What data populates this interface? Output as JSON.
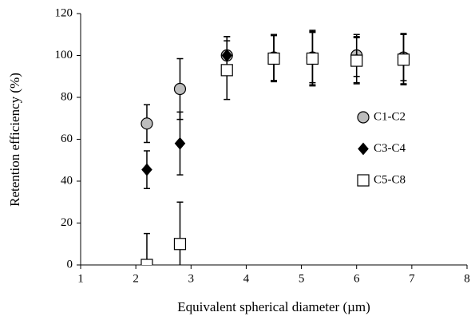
{
  "chart_data": {
    "type": "scatter",
    "x_label": "Equivalent spherical diameter (µm)",
    "y_label": "Retention efficiency (%)",
    "xlim": [
      1,
      8
    ],
    "xticks": [
      1,
      2,
      3,
      4,
      5,
      6,
      7,
      8
    ],
    "ylim": [
      0,
      120
    ],
    "yticks": [
      0,
      20,
      40,
      60,
      80,
      100,
      120
    ],
    "grid": false,
    "legend": "right",
    "series": [
      {
        "name": "C1-C2",
        "color": "#bdbdbd",
        "marker": "circle",
        "x": [
          2.2,
          2.8,
          3.65,
          4.5,
          5.2,
          6.0,
          6.85
        ],
        "values": [
          67.5,
          84,
          100,
          99,
          99,
          100,
          99
        ],
        "errors": [
          9,
          14.5,
          9,
          11,
          12,
          10,
          11
        ]
      },
      {
        "name": "C3-C4",
        "color": "#000000",
        "marker": "diamond",
        "x": [
          2.2,
          2.8,
          3.65,
          4.5,
          5.2,
          6.0,
          6.85
        ],
        "values": [
          45.5,
          58,
          100,
          99,
          99,
          98,
          98.5
        ],
        "errors": [
          9,
          15,
          9,
          11,
          13,
          11,
          12
        ]
      },
      {
        "name": "C5-C8",
        "color": "#ffffff",
        "marker": "square",
        "x": [
          2.2,
          2.8,
          3.65,
          4.5,
          5.2,
          6.0,
          6.85
        ],
        "values": [
          0,
          10,
          93,
          98.5,
          98.5,
          97.5,
          98
        ],
        "errors": [
          15,
          20,
          14,
          11,
          13,
          11,
          12
        ]
      }
    ]
  }
}
